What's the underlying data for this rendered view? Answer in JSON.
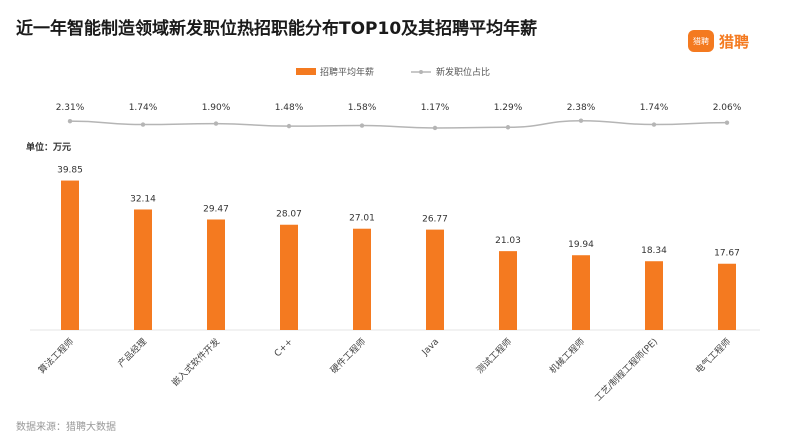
{
  "title": "近一年智能制造领域新发职位热招职能分布TOP10及其招聘平均年薪",
  "logo": {
    "badge": "猎聘",
    "text": "猎聘"
  },
  "source": "数据来源：猎聘大数据",
  "colors": {
    "bar": "#f47a20",
    "line": "#b5b5b5",
    "text": "#333333"
  },
  "chart_data": {
    "type": "bar",
    "categories": [
      "算法工程师",
      "产品经理",
      "嵌入式软件开发",
      "C++",
      "硬件工程师",
      "Java",
      "测试工程师",
      "机械工程师",
      "工艺/制程工程师(PE)",
      "电气工程师"
    ],
    "unit_label": "单位：万元",
    "legend": {
      "position": "top-center"
    },
    "series": [
      {
        "name": "招聘平均年薪",
        "type": "bar",
        "values": [
          39.85,
          32.14,
          29.47,
          28.07,
          27.01,
          26.77,
          21.03,
          19.94,
          18.34,
          17.67
        ],
        "labels": [
          "39.85",
          "32.14",
          "29.47",
          "28.07",
          "27.01",
          "26.77",
          "21.03",
          "19.94",
          "18.34",
          "17.67"
        ]
      },
      {
        "name": "新发职位占比",
        "type": "line",
        "values": [
          2.31,
          1.74,
          1.9,
          1.48,
          1.58,
          1.17,
          1.29,
          2.38,
          1.74,
          2.06
        ],
        "labels": [
          "2.31%",
          "1.74%",
          "1.90%",
          "1.48%",
          "1.58%",
          "1.17%",
          "1.29%",
          "2.38%",
          "1.74%",
          "2.06%"
        ]
      }
    ]
  }
}
